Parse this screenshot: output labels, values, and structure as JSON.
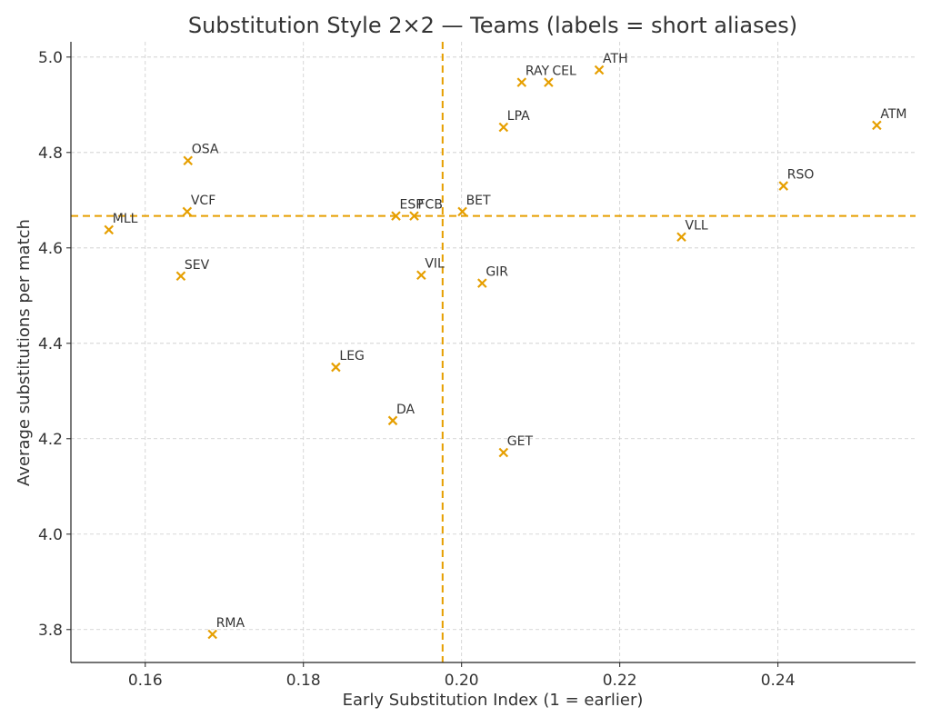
{
  "chart_data": {
    "type": "scatter",
    "title": "Substitution Style 2×2 — Teams (labels = short aliases)",
    "xlabel": "Early Substitution Index (1 = earlier)",
    "ylabel": "Average substitutions per match",
    "xlim": [
      0.1506,
      0.2574
    ],
    "ylim": [
      3.731,
      5.032
    ],
    "xticks": [
      0.16,
      0.18,
      0.2,
      0.22,
      0.24
    ],
    "xtick_labels": [
      "0.16",
      "0.18",
      "0.20",
      "0.22",
      "0.24"
    ],
    "yticks": [
      3.8,
      4.0,
      4.2,
      4.4,
      4.6,
      4.8,
      5.0
    ],
    "ytick_labels": [
      "3.8",
      "4.0",
      "4.2",
      "4.4",
      "4.6",
      "4.8",
      "5.0"
    ],
    "grid": true,
    "marker": "x",
    "color": "#E69F00",
    "reference_lines": {
      "x": 0.1976,
      "y": 4.667,
      "style": "dashed"
    },
    "points": [
      {
        "label": "MLL",
        "x": 0.1554,
        "y": 4.638
      },
      {
        "label": "OSA",
        "x": 0.1654,
        "y": 4.783
      },
      {
        "label": "VCF",
        "x": 0.1653,
        "y": 4.676
      },
      {
        "label": "SEV",
        "x": 0.1645,
        "y": 4.541
      },
      {
        "label": "RMA",
        "x": 0.1685,
        "y": 3.79
      },
      {
        "label": "LEG",
        "x": 0.1841,
        "y": 4.35
      },
      {
        "label": "DA",
        "x": 0.1913,
        "y": 4.238
      },
      {
        "label": "ESP",
        "x": 0.1917,
        "y": 4.667
      },
      {
        "label": "FCB",
        "x": 0.194,
        "y": 4.667
      },
      {
        "label": "VIL",
        "x": 0.1949,
        "y": 4.543
      },
      {
        "label": "BET",
        "x": 0.2001,
        "y": 4.676
      },
      {
        "label": "GIR",
        "x": 0.2026,
        "y": 4.526
      },
      {
        "label": "GET",
        "x": 0.2053,
        "y": 4.171
      },
      {
        "label": "LPA",
        "x": 0.2053,
        "y": 4.853
      },
      {
        "label": "RAY",
        "x": 0.2076,
        "y": 4.947
      },
      {
        "label": "CEL",
        "x": 0.211,
        "y": 4.947
      },
      {
        "label": "ATH",
        "x": 0.2174,
        "y": 4.973
      },
      {
        "label": "VLL",
        "x": 0.2278,
        "y": 4.623
      },
      {
        "label": "RSO",
        "x": 0.2407,
        "y": 4.73
      },
      {
        "label": "ATM",
        "x": 0.2525,
        "y": 4.857
      }
    ]
  }
}
